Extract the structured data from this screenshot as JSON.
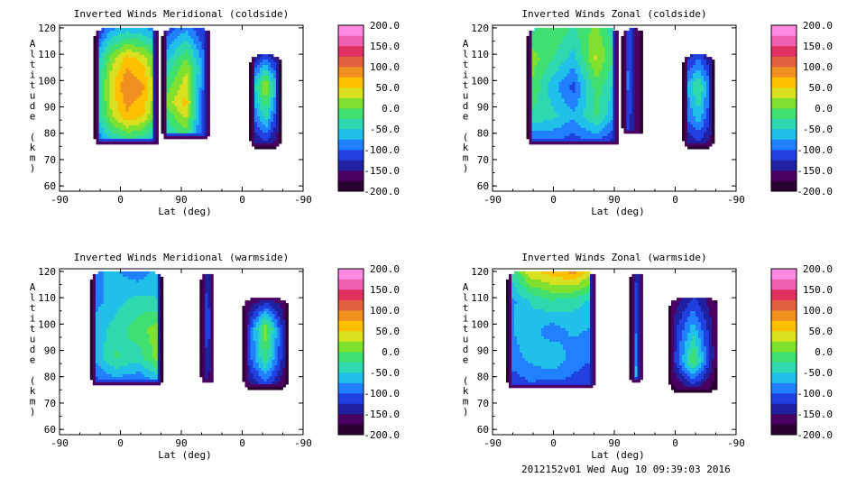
{
  "colors": {
    "palette": [
      "#2a0030",
      "#4a0060",
      "#2020a0",
      "#2040e0",
      "#2080ff",
      "#20c0e8",
      "#30d8b0",
      "#40e070",
      "#80e030",
      "#d8e020",
      "#ffc000",
      "#f09020",
      "#e06040",
      "#e03060",
      "#f060b0",
      "#ff88e0"
    ]
  },
  "footer": {
    "text": "2012152v01 Wed Aug 10 09:39:03 2016"
  },
  "chart_data": [
    {
      "type": "heatmap",
      "title": "Inverted Winds Meridional (coldside)",
      "xlabel": "Lat (deg)",
      "ylabel": "Altitude (km)",
      "xticks": [
        "-90",
        "0",
        "90",
        "0",
        "-90"
      ],
      "yticks": [
        "60",
        "70",
        "80",
        "90",
        "100",
        "110",
        "120"
      ],
      "ylim": [
        58,
        121
      ],
      "colorbar": {
        "ticks": [
          "200.0",
          "150.0",
          "100.0",
          "50.0",
          "0.0",
          "-50.0",
          "-100.0",
          "-150.0",
          "-200.0"
        ],
        "range": [
          -200,
          200
        ]
      },
      "blobs": [
        {
          "x0": -40,
          "x1": 55,
          "y0": 76,
          "y1": 120,
          "vals": [
            [
              -140,
              -80,
              -60,
              -70,
              -90
            ],
            [
              -80,
              10,
              60,
              40,
              -20
            ],
            [
              -60,
              40,
              100,
              80,
              0
            ],
            [
              -70,
              20,
              70,
              50,
              -20
            ],
            [
              -110,
              -70,
              -50,
              -60,
              -100
            ]
          ]
        },
        {
          "x0": 60,
          "x1": 130,
          "y0": 78,
          "y1": 120,
          "vals": [
            [
              -120,
              -80,
              -140
            ],
            [
              -60,
              20,
              -120
            ],
            [
              0,
              60,
              -180
            ],
            [
              -80,
              -20,
              -160
            ]
          ]
        },
        {
          "x0": 190,
          "x1": 235,
          "y0": 75,
          "y1": 110,
          "vals": [
            [
              -160,
              -120,
              -170
            ],
            [
              -80,
              30,
              -110
            ],
            [
              -120,
              -40,
              -150
            ],
            [
              -170,
              -140,
              -180
            ]
          ]
        }
      ]
    },
    {
      "type": "heatmap",
      "title": "Inverted Winds Zonal (coldside)",
      "xlabel": "Lat (deg)",
      "ylabel": "Altitude (km)",
      "xticks": [
        "-90",
        "0",
        "90",
        "0",
        "-90"
      ],
      "yticks": [
        "60",
        "70",
        "80",
        "90",
        "100",
        "110",
        "120"
      ],
      "ylim": [
        58,
        121
      ],
      "colorbar": {
        "ticks": [
          "200.0",
          "150.0",
          "100.0",
          "50.0",
          "0.0",
          "-50.0",
          "-100.0",
          "-150.0",
          "-200.0"
        ],
        "range": [
          -200,
          200
        ]
      },
      "blobs": [
        {
          "x0": -40,
          "x1": 95,
          "y0": 76,
          "y1": 120,
          "vals": [
            [
              -40,
              0,
              -30,
              10,
              -60
            ],
            [
              20,
              -20,
              -60,
              30,
              -40
            ],
            [
              10,
              -60,
              -110,
              -10,
              -70
            ],
            [
              -30,
              -40,
              -70,
              -20,
              -90
            ],
            [
              -120,
              -110,
              -120,
              -110,
              -150
            ]
          ]
        },
        {
          "x0": 100,
          "x1": 130,
          "y0": 80,
          "y1": 120,
          "vals": [
            [
              -80,
              -190
            ],
            [
              -60,
              -200
            ],
            [
              -90,
              -190
            ]
          ]
        },
        {
          "x0": 190,
          "x1": 235,
          "y0": 75,
          "y1": 110,
          "vals": [
            [
              -150,
              -110,
              -170
            ],
            [
              -90,
              -20,
              -120
            ],
            [
              -110,
              -60,
              -140
            ],
            [
              -170,
              -140,
              -180
            ]
          ]
        }
      ]
    },
    {
      "type": "heatmap",
      "title": "Inverted Winds Meridional (warmside)",
      "xlabel": "Lat (deg)",
      "ylabel": "Altitude (km)",
      "xticks": [
        "-90",
        "0",
        "90",
        "0",
        "-90"
      ],
      "yticks": [
        "60",
        "70",
        "80",
        "90",
        "100",
        "110",
        "120"
      ],
      "ylim": [
        58,
        121
      ],
      "colorbar": {
        "ticks": [
          "200.0",
          "150.0",
          "100.0",
          "50.0",
          "0.0",
          "-50.0",
          "-100.0",
          "-150.0",
          "-200.0"
        ],
        "range": [
          -200,
          200
        ]
      },
      "blobs": [
        {
          "x0": -45,
          "x1": 60,
          "y0": 77,
          "y1": 120,
          "vals": [
            [
              -80,
              -70,
              -90,
              -60
            ],
            [
              -90,
              -60,
              -40,
              -50
            ],
            [
              -70,
              -40,
              -10,
              20
            ],
            [
              -80,
              -20,
              -40,
              30
            ],
            [
              -120,
              -100,
              -110,
              -90
            ]
          ]
        },
        {
          "x0": 117,
          "x1": 137,
          "y0": 78,
          "y1": 120,
          "vals": [
            [
              -120,
              -150
            ],
            [
              -100,
              -130
            ],
            [
              -140,
              -170
            ]
          ]
        },
        {
          "x0": 180,
          "x1": 245,
          "y0": 76,
          "y1": 110,
          "vals": [
            [
              -180,
              -150,
              -170
            ],
            [
              -160,
              20,
              -170
            ],
            [
              -140,
              -20,
              -160
            ],
            [
              -180,
              -120,
              -190
            ]
          ]
        }
      ]
    },
    {
      "type": "heatmap",
      "title": "Inverted Winds Zonal (warmside)",
      "xlabel": "Lat (deg)",
      "ylabel": "Altitude (km)",
      "xticks": [
        "-90",
        "0",
        "90",
        "0",
        "-90"
      ],
      "yticks": [
        "60",
        "70",
        "80",
        "90",
        "100",
        "110",
        "120"
      ],
      "ylim": [
        58,
        121
      ],
      "colorbar": {
        "ticks": [
          "200.0",
          "150.0",
          "100.0",
          "50.0",
          "0.0",
          "-50.0",
          "-100.0",
          "-150.0",
          "-200.0"
        ],
        "range": [
          -200,
          200
        ]
      },
      "blobs": [
        {
          "x0": -70,
          "x1": 60,
          "y0": 76,
          "y1": 120,
          "vals": [
            [
              -60,
              40,
              60,
              80,
              20
            ],
            [
              -90,
              -50,
              -30,
              -40,
              -60
            ],
            [
              -80,
              -60,
              -90,
              -70,
              -80
            ],
            [
              -90,
              -70,
              -50,
              -90,
              -100
            ],
            [
              -130,
              -110,
              -120,
              -110,
              -130
            ]
          ]
        },
        {
          "x0": 112,
          "x1": 130,
          "y0": 78,
          "y1": 120,
          "vals": [
            [
              -120,
              -140
            ],
            [
              -60,
              -160
            ],
            [
              10,
              -150
            ]
          ]
        },
        {
          "x0": 170,
          "x1": 240,
          "y0": 75,
          "y1": 110,
          "vals": [
            [
              -180,
              -120,
              -180
            ],
            [
              -150,
              -60,
              -170
            ],
            [
              -160,
              0,
              -180
            ],
            [
              -190,
              -160,
              -190
            ]
          ]
        }
      ]
    }
  ]
}
